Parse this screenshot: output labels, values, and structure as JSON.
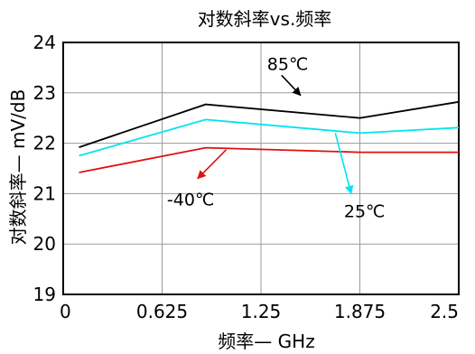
{
  "chart_data": {
    "type": "line",
    "title": "对数斜率vs.频率",
    "xlabel": "频率— GHz",
    "ylabel": "对数斜率— mV/dB",
    "xlim": [
      0,
      2.5
    ],
    "ylim": [
      19,
      24
    ],
    "x_ticks": [
      0,
      0.625,
      1.25,
      1.875,
      2.5
    ],
    "x_tick_labels": [
      "0",
      "0.625",
      "1.25",
      "1.875",
      "2.5"
    ],
    "y_ticks": [
      19,
      20,
      21,
      22,
      23,
      24
    ],
    "y_tick_labels": [
      "19",
      "20",
      "21",
      "22",
      "23",
      "24"
    ],
    "grid": true,
    "series": [
      {
        "name": "85℃",
        "color": "#000000",
        "x": [
          0.1,
          0.9,
          1.875,
          2.5
        ],
        "y": [
          21.92,
          22.77,
          22.5,
          22.82
        ]
      },
      {
        "name": "25℃",
        "color": "#00e5f0",
        "x": [
          0.1,
          0.9,
          1.875,
          2.5
        ],
        "y": [
          21.75,
          22.47,
          22.2,
          22.31
        ]
      },
      {
        "name": "-40℃",
        "color": "#e01010",
        "x": [
          0.1,
          0.9,
          1.875,
          2.5
        ],
        "y": [
          21.42,
          21.91,
          21.82,
          21.82
        ]
      }
    ],
    "annotations": [
      {
        "text": "85℃",
        "color": "#000000",
        "tail": [
          1.38,
          23.35
        ],
        "head": [
          1.5,
          22.95
        ]
      },
      {
        "text": "25℃",
        "color": "#00e5f0",
        "tail": [
          1.72,
          22.2
        ],
        "head": [
          1.82,
          21.0
        ]
      },
      {
        "text": "-40℃",
        "color": "#e01010",
        "tail": [
          1.03,
          21.87
        ],
        "head": [
          0.85,
          21.3
        ]
      }
    ]
  }
}
